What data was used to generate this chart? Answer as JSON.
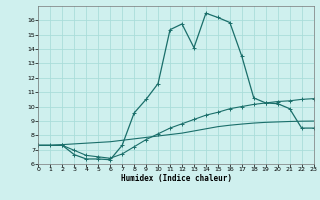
{
  "xlabel": "Humidex (Indice chaleur)",
  "background_color": "#cff0ee",
  "grid_color": "#aaddda",
  "line_color": "#1a6e6a",
  "xlim": [
    0,
    23
  ],
  "ylim": [
    6,
    17
  ],
  "yticks": [
    6,
    7,
    8,
    9,
    10,
    11,
    12,
    13,
    14,
    15,
    16
  ],
  "xticks": [
    0,
    1,
    2,
    3,
    4,
    5,
    6,
    7,
    8,
    9,
    10,
    11,
    12,
    13,
    14,
    15,
    16,
    17,
    18,
    19,
    20,
    21,
    22,
    23
  ],
  "curve_smooth_x": [
    0,
    1,
    2,
    3,
    4,
    5,
    6,
    7,
    8,
    9,
    10,
    11,
    12,
    13,
    14,
    15,
    16,
    17,
    18,
    19,
    20,
    21,
    22,
    23
  ],
  "curve_smooth_y": [
    7.3,
    7.3,
    7.35,
    7.4,
    7.45,
    7.5,
    7.55,
    7.65,
    7.75,
    7.85,
    7.95,
    8.05,
    8.15,
    8.3,
    8.45,
    8.6,
    8.7,
    8.78,
    8.85,
    8.9,
    8.93,
    8.96,
    8.98,
    8.99
  ],
  "curve_mid_x": [
    0,
    1,
    2,
    3,
    4,
    5,
    6,
    7,
    8,
    9,
    10,
    11,
    12,
    13,
    14,
    15,
    16,
    17,
    18,
    19,
    20,
    21,
    22,
    23
  ],
  "curve_mid_y": [
    7.3,
    7.3,
    7.3,
    6.95,
    6.6,
    6.5,
    6.4,
    6.7,
    7.2,
    7.7,
    8.1,
    8.5,
    8.8,
    9.1,
    9.4,
    9.6,
    9.85,
    10.0,
    10.15,
    10.25,
    10.35,
    10.4,
    10.5,
    10.55
  ],
  "curve_peak_x": [
    0,
    2,
    3,
    4,
    5,
    6,
    7,
    8,
    9,
    10,
    11,
    12,
    13,
    14,
    15,
    16,
    17,
    18,
    19,
    20,
    21,
    22,
    23
  ],
  "curve_peak_y": [
    7.3,
    7.3,
    6.65,
    6.35,
    6.35,
    6.3,
    7.3,
    9.55,
    10.5,
    11.6,
    15.35,
    15.75,
    14.1,
    16.5,
    16.2,
    15.85,
    13.5,
    10.6,
    10.25,
    10.2,
    9.85,
    8.5,
    8.5
  ]
}
